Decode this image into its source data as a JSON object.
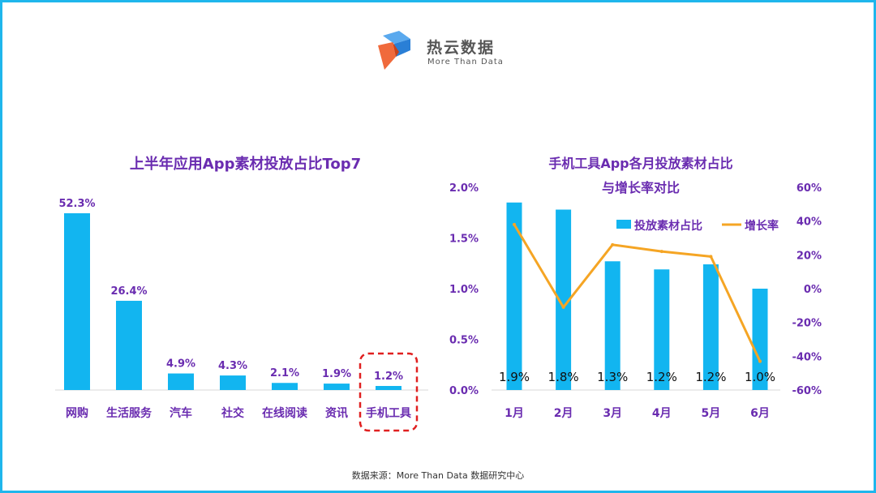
{
  "brand": {
    "name": "热云数据",
    "tagline": "More Than Data"
  },
  "colors": {
    "bar": "#12b5f0",
    "line": "#f5a524",
    "title": "#6a2cb0",
    "frame": "#1fb6ec",
    "highlight": "#e02020"
  },
  "source": "数据来源：More Than Data 数据研究中心",
  "chart_data": [
    {
      "type": "bar",
      "title": "上半年应用App素材投放占比Top7",
      "categories": [
        "网购",
        "生活服务",
        "汽车",
        "社交",
        "在线阅读",
        "资讯",
        "手机工具"
      ],
      "values": [
        52.3,
        26.4,
        4.9,
        4.3,
        2.1,
        1.9,
        1.2
      ],
      "value_labels": [
        "52.3%",
        "26.4%",
        "4.9%",
        "4.3%",
        "2.1%",
        "1.9%",
        "1.2%"
      ],
      "highlighted_category": "手机工具"
    },
    {
      "type": "bar+line",
      "title_lines": [
        "手机工具App各月投放素材占比",
        "与增长率对比"
      ],
      "categories": [
        "1月",
        "2月",
        "3月",
        "4月",
        "5月",
        "6月"
      ],
      "series": [
        {
          "name": "投放素材占比",
          "type": "bar",
          "axis": "left",
          "values": [
            1.85,
            1.78,
            1.27,
            1.19,
            1.24,
            1.0
          ],
          "value_labels": [
            "1.9%",
            "1.8%",
            "1.3%",
            "1.2%",
            "1.2%",
            "1.0%"
          ]
        },
        {
          "name": "增长率",
          "type": "line",
          "axis": "right",
          "values": [
            38,
            -11,
            26,
            22,
            19,
            -43
          ]
        }
      ],
      "left_axis": {
        "ticks": [
          "0.0%",
          "0.5%",
          "1.0%",
          "1.5%",
          "2.0%"
        ],
        "ylim": [
          0,
          2.0
        ]
      },
      "right_axis": {
        "ticks": [
          "-60%",
          "-40%",
          "-20%",
          "0%",
          "20%",
          "40%",
          "60%"
        ],
        "ylim": [
          -60,
          60
        ]
      },
      "legend": "top-right"
    }
  ]
}
